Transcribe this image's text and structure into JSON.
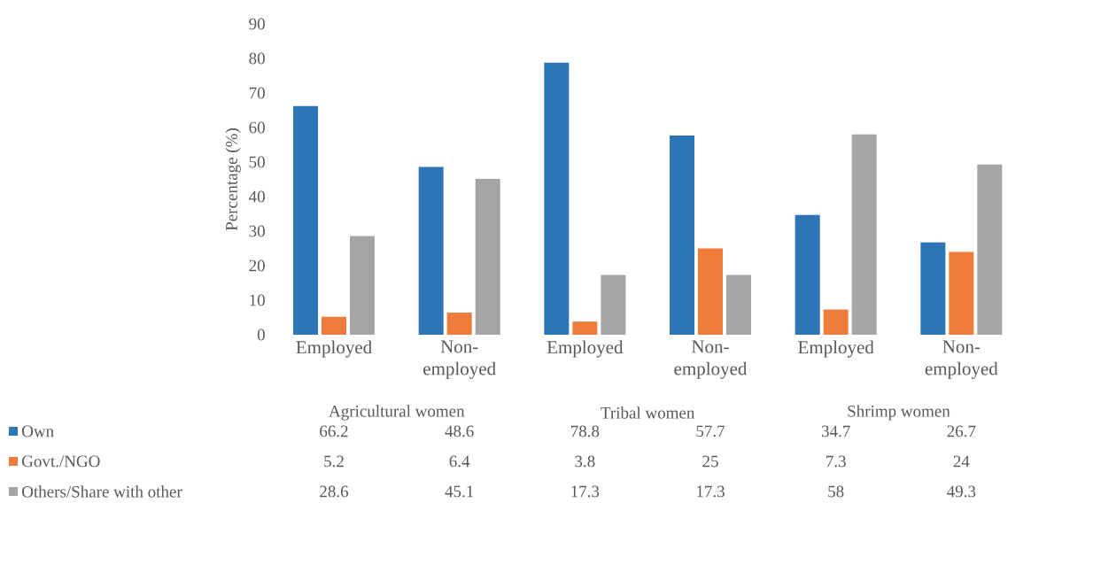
{
  "chart_data": {
    "type": "bar",
    "ylabel": "Percentage (%)",
    "categories": [
      "Employed",
      "Non-employed",
      "Employed",
      "Non-employed",
      "Employed",
      "Non-employed"
    ],
    "series": [
      {
        "name": "Own",
        "color": "#2e75b6",
        "values": [
          66.2,
          48.6,
          78.8,
          57.7,
          34.7,
          26.7
        ]
      },
      {
        "name": "Govt./NGO",
        "color": "#f07c3c",
        "values": [
          5.2,
          6.4,
          3.8,
          25,
          7.3,
          24
        ]
      },
      {
        "name": "Others/Share with other",
        "color": "#a5a5a5",
        "values": [
          28.6,
          45.1,
          17.3,
          17.3,
          58,
          49.3
        ]
      }
    ],
    "ylim": [
      0,
      90
    ],
    "yticks": [
      0,
      10,
      20,
      30,
      40,
      50,
      60,
      70,
      80,
      90
    ],
    "annotations": [
      "Agricultural women",
      "Tribal women",
      "Shrimp women"
    ],
    "data_labels": true,
    "legend": "bottom",
    "grid": false
  }
}
